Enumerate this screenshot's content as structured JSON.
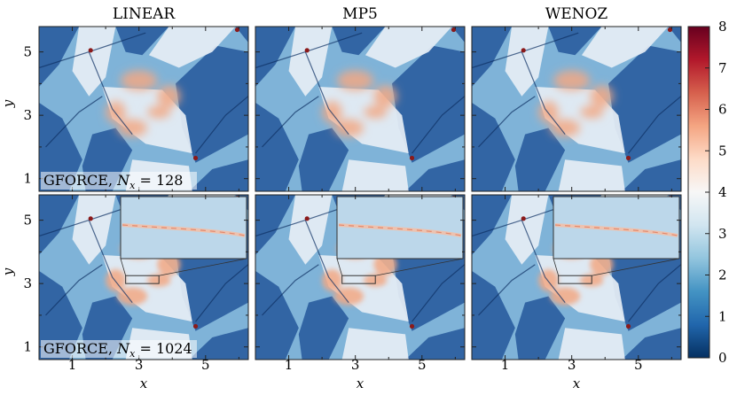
{
  "chart_data": {
    "type": "heatmap",
    "column_titles": [
      "LINEAR",
      "MP5",
      "WENOZ"
    ],
    "row_labels": [
      {
        "scheme": "GFORCE,",
        "var": "N",
        "sub": "x",
        "eq": "= 128"
      },
      {
        "scheme": "GFORCE,",
        "var": "N",
        "sub": "x",
        "eq": "= 1024"
      }
    ],
    "xlabel": "x",
    "ylabel": "y",
    "x_ticks": [
      "1",
      "3",
      "5"
    ],
    "y_ticks": [
      "1",
      "3",
      "5"
    ],
    "xlim": [
      0,
      6.2832
    ],
    "ylim": [
      0.6,
      5.8
    ],
    "colorbar": {
      "ticks": [
        "0",
        "1",
        "2",
        "3",
        "4",
        "5",
        "6",
        "7",
        "8"
      ],
      "range": [
        0,
        8
      ],
      "colormap": "RdBu_r",
      "colors": [
        "#053061",
        "#2166ac",
        "#4393c3",
        "#92c5de",
        "#d1e5f0",
        "#f7f7f7",
        "#fddbc7",
        "#f4a582",
        "#d6604d",
        "#b2182b",
        "#67001f"
      ]
    },
    "panels": [
      {
        "row": 0,
        "col": 0,
        "inset": false
      },
      {
        "row": 0,
        "col": 1,
        "inset": false
      },
      {
        "row": 0,
        "col": 2,
        "inset": false
      },
      {
        "row": 1,
        "col": 0,
        "inset": true
      },
      {
        "row": 1,
        "col": 1,
        "inset": true
      },
      {
        "row": 1,
        "col": 2,
        "inset": true
      }
    ],
    "inset_zoom_region": {
      "x": [
        2.6,
        3.6
      ],
      "y": [
        3.0,
        3.25
      ]
    }
  }
}
